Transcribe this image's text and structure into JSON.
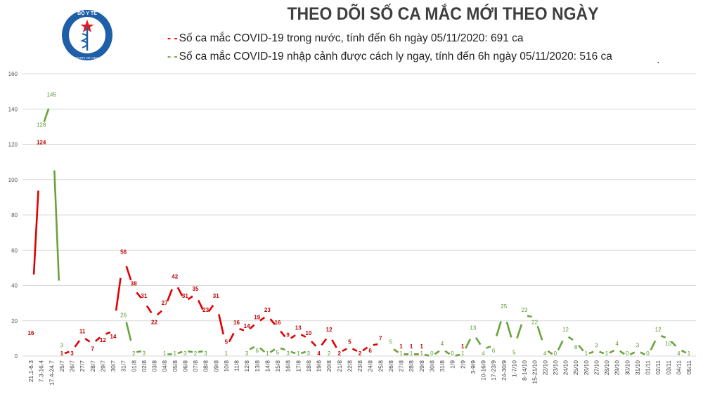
{
  "logo": {
    "text_top": "BỘ Y TẾ",
    "text_bottom": "MINISTRY OF HEALTH"
  },
  "chart_data": {
    "type": "line",
    "title": "THEO DÕI SỐ CA MẮC MỚI THEO NGÀY",
    "xlabel": "",
    "ylabel": "",
    "ylim": [
      0,
      160
    ],
    "yticks": [
      0,
      20,
      40,
      60,
      80,
      100,
      120,
      140,
      160
    ],
    "grid": true,
    "legend_position": "top",
    "categories": [
      "21.1-6.3",
      "7.3-16.4",
      "17.4-24.7",
      "25/7",
      "26/7",
      "27/7",
      "28/7",
      "29/7",
      "30/7",
      "31/7",
      "01/8",
      "02/8",
      "03/8",
      "04/8",
      "05/8",
      "06/8",
      "07/8",
      "08/8",
      "09/8",
      "10/8",
      "11/8",
      "12/8",
      "13/8",
      "14/8",
      "15/8",
      "16/8",
      "17/8",
      "18/8",
      "19/8",
      "20/8",
      "21/8",
      "22/8",
      "23/8",
      "24/8",
      "25/8",
      "26/8",
      "27/8",
      "28/8",
      "29/8",
      "30/8",
      "31/8",
      "1/9",
      "2/9",
      "3-9/9",
      "10-16/9",
      "17-23/9",
      "24-30/9",
      "1-7/10",
      "8-14/10",
      "15-21/10",
      "22/10",
      "23/10",
      "24/10",
      "25/10",
      "26/10",
      "27/10",
      "28/10",
      "29/10",
      "30/10",
      "31/10",
      "01/11",
      "02/11",
      "03/11",
      "04/11",
      "05/11"
    ],
    "series": [
      {
        "name": "Số ca mắc COVID-19 trong nước, tính đến 6h ngày 05/11/2020: 691 ca",
        "color": "#e00000",
        "label_color": "#c00000",
        "values": [
          16,
          124,
          null,
          1,
          3,
          11,
          7,
          12,
          14,
          56,
          38,
          31,
          22,
          27,
          42,
          31,
          35,
          23,
          31,
          5,
          16,
          14,
          19,
          23,
          16,
          9,
          13,
          10,
          4,
          12,
          2,
          5,
          2,
          6,
          7,
          null,
          1,
          1,
          1,
          null,
          null,
          null,
          1,
          null,
          null,
          null,
          null,
          null,
          null,
          null,
          null,
          null,
          null,
          null,
          null,
          null,
          null,
          null,
          null,
          null,
          null,
          null,
          null,
          null,
          null
        ]
      },
      {
        "name": "Số ca mắc COVID-19 nhập cảnh được cách ly ngay, tính đến 6h ngày 05/11/2020: 516 ca",
        "color": "#6aa33a",
        "label_color": "#5b9a32",
        "values": [
          null,
          128,
          145,
          3,
          null,
          null,
          null,
          null,
          null,
          26,
          2,
          3,
          null,
          1,
          1,
          3,
          2,
          3,
          null,
          1,
          null,
          3,
          6,
          1,
          5,
          3,
          1,
          3,
          null,
          2,
          null,
          null,
          null,
          null,
          null,
          5,
          1,
          1,
          1,
          0,
          4,
          0,
          1,
          13,
          4,
          6,
          25,
          5,
          23,
          22,
          4,
          0,
          12,
          8,
          1,
          3,
          1,
          4,
          0,
          3,
          0,
          12,
          10,
          4,
          1
        ]
      }
    ]
  }
}
